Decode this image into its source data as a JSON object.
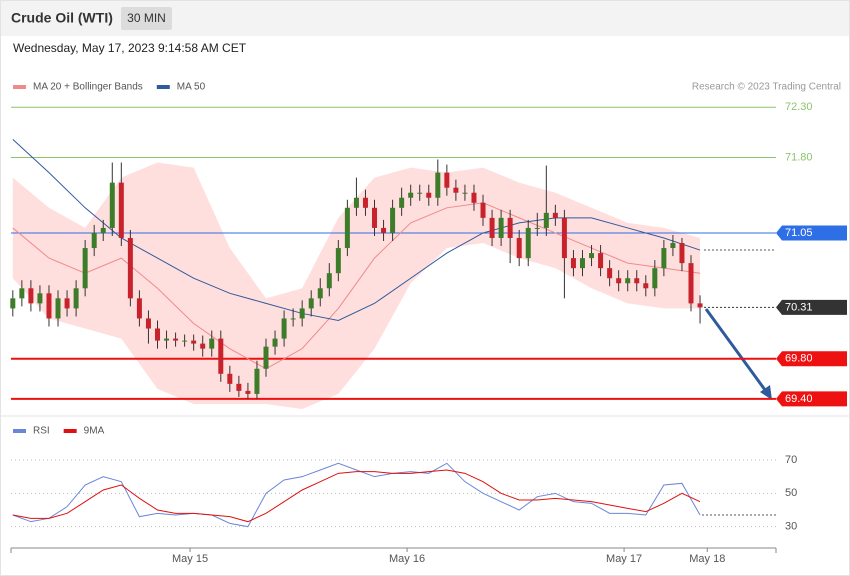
{
  "header": {
    "title": "Crude Oil (WTI)",
    "interval": "30 MIN",
    "timestamp": "Wednesday, May 17, 2023 9:14:58 AM CET",
    "credit": "Research © 2023 Trading Central"
  },
  "chart_data": [
    {
      "type": "candlestick",
      "xlim": [
        -0.2,
        84.4
      ],
      "ylim": [
        69.29,
        72.67
      ],
      "up_color": "#3d7d2a",
      "down_color": "#c8232c",
      "open": [
        70.3,
        70.4,
        70.5,
        70.35,
        70.45,
        70.2,
        70.4,
        70.3,
        70.5,
        70.9,
        71.05,
        71.1,
        71.55,
        71.0,
        70.4,
        70.2,
        70.1,
        69.98,
        70.0,
        69.98,
        69.98,
        69.95,
        69.9,
        70.0,
        69.65,
        69.55,
        69.48,
        69.45,
        69.7,
        69.92,
        70.0,
        70.2,
        70.2,
        70.3,
        70.4,
        70.5,
        70.65,
        70.9,
        71.3,
        71.4,
        71.3,
        71.1,
        71.05,
        71.3,
        71.4,
        71.45,
        71.45,
        71.4,
        71.65,
        71.5,
        71.45,
        71.45,
        71.35,
        71.2,
        71.0,
        71.2,
        71.0,
        70.8,
        71.1,
        71.1,
        71.25,
        71.2,
        70.8,
        70.7,
        70.8,
        70.85,
        70.7,
        70.6,
        70.55,
        70.6,
        70.55,
        70.5,
        70.7,
        70.9,
        70.95,
        70.75,
        70.35
      ],
      "high": [
        70.48,
        70.58,
        70.58,
        70.53,
        70.53,
        70.48,
        70.48,
        70.58,
        70.98,
        71.13,
        71.18,
        71.75,
        71.75,
        71.08,
        70.48,
        70.28,
        70.18,
        70.08,
        70.06,
        70.04,
        70.04,
        70.03,
        70.08,
        70.08,
        69.73,
        69.63,
        69.56,
        69.78,
        70.0,
        70.08,
        70.28,
        70.3,
        70.38,
        70.48,
        70.6,
        70.75,
        70.98,
        71.38,
        71.6,
        71.48,
        71.38,
        71.18,
        71.38,
        71.5,
        71.53,
        71.53,
        71.53,
        71.78,
        71.73,
        71.58,
        71.53,
        71.53,
        71.43,
        71.28,
        71.28,
        71.28,
        71.08,
        71.18,
        71.25,
        71.72,
        71.33,
        71.28,
        70.88,
        70.88,
        70.93,
        70.93,
        70.78,
        70.68,
        70.68,
        70.68,
        70.63,
        70.78,
        70.98,
        71.03,
        71.0,
        70.83,
        70.43
      ],
      "low": [
        70.22,
        70.32,
        70.27,
        70.27,
        70.12,
        70.12,
        70.22,
        70.22,
        70.42,
        70.82,
        70.97,
        71.02,
        70.92,
        70.32,
        70.12,
        69.95,
        69.9,
        69.9,
        69.92,
        69.92,
        69.88,
        69.82,
        69.82,
        69.57,
        69.47,
        69.42,
        69.4,
        69.4,
        69.62,
        69.84,
        69.92,
        70.12,
        70.12,
        70.22,
        70.32,
        70.42,
        70.57,
        70.82,
        71.22,
        71.22,
        71.02,
        70.97,
        70.97,
        71.22,
        71.32,
        71.37,
        71.32,
        71.32,
        71.42,
        71.37,
        71.37,
        71.27,
        71.12,
        70.92,
        70.92,
        70.75,
        70.72,
        70.72,
        71.02,
        71.02,
        71.12,
        70.4,
        70.62,
        70.62,
        70.72,
        70.62,
        70.52,
        70.47,
        70.47,
        70.47,
        70.42,
        70.42,
        70.62,
        70.82,
        70.67,
        70.27,
        70.15
      ],
      "close": [
        70.4,
        70.5,
        70.35,
        70.45,
        70.2,
        70.4,
        70.3,
        70.5,
        70.9,
        71.05,
        71.1,
        71.55,
        71.0,
        70.4,
        70.2,
        70.1,
        69.98,
        70.0,
        69.98,
        69.98,
        69.95,
        69.9,
        70.0,
        69.65,
        69.55,
        69.48,
        69.45,
        69.7,
        69.92,
        70.0,
        70.2,
        70.2,
        70.3,
        70.4,
        70.5,
        70.65,
        70.9,
        71.3,
        71.4,
        71.3,
        71.1,
        71.05,
        71.3,
        71.4,
        71.45,
        71.45,
        71.4,
        71.65,
        71.5,
        71.45,
        71.45,
        71.35,
        71.2,
        71.0,
        71.2,
        71.0,
        70.8,
        71.1,
        71.1,
        71.25,
        71.2,
        70.8,
        70.7,
        70.8,
        70.85,
        70.7,
        70.6,
        70.55,
        70.6,
        70.55,
        70.5,
        70.7,
        70.9,
        70.95,
        70.75,
        70.35,
        70.31
      ],
      "ma_x": [
        0,
        4,
        8,
        12,
        16,
        20,
        24,
        28,
        32,
        36,
        40,
        44,
        48,
        52,
        56,
        60,
        64,
        68,
        72,
        76
      ],
      "series": [
        {
          "name": "MA 20 + Bollinger Bands",
          "color": "#f08a8a",
          "band_color": "#ffdede",
          "values": [
            71.1,
            70.8,
            70.65,
            70.8,
            70.5,
            70.15,
            69.9,
            69.7,
            69.9,
            70.3,
            70.8,
            71.15,
            71.3,
            71.35,
            71.2,
            71.05,
            70.9,
            70.75,
            70.7,
            70.65
          ],
          "upper": [
            71.6,
            71.3,
            71.1,
            71.6,
            71.75,
            71.7,
            70.9,
            70.4,
            70.5,
            71.2,
            71.6,
            71.7,
            71.65,
            71.7,
            71.55,
            71.45,
            71.3,
            71.15,
            71.1,
            71.0
          ],
          "lower": [
            70.6,
            70.2,
            70.1,
            70.0,
            69.5,
            69.35,
            69.35,
            69.35,
            69.3,
            69.45,
            69.9,
            70.55,
            70.9,
            70.95,
            70.8,
            70.7,
            70.5,
            70.35,
            70.3,
            70.3
          ]
        },
        {
          "name": "MA 50",
          "color": "#2f5b9c",
          "values": [
            71.98,
            71.65,
            71.3,
            71.0,
            70.8,
            70.6,
            70.45,
            70.35,
            70.25,
            70.18,
            70.35,
            70.6,
            70.85,
            71.05,
            71.15,
            71.2,
            71.2,
            71.1,
            71.0,
            70.88
          ]
        }
      ],
      "levels": [
        {
          "value": 72.3,
          "label": "72.30",
          "color": "#8cc46c",
          "style": "line"
        },
        {
          "value": 71.8,
          "label": "71.80",
          "color": "#8cc46c",
          "style": "line"
        },
        {
          "value": 71.05,
          "label": "71.05",
          "color": "#2f6fe6",
          "style": "box"
        },
        {
          "value": 70.31,
          "label": "70.31",
          "color": "#333333",
          "style": "dotted-box"
        },
        {
          "value": 69.8,
          "label": "69.80",
          "color": "#ee1111",
          "style": "box"
        },
        {
          "value": 69.4,
          "label": "69.40",
          "color": "#ee1111",
          "style": "box"
        }
      ]
    },
    {
      "type": "line",
      "xlim": [
        -0.2,
        84.4
      ],
      "ylim": [
        22,
        79
      ],
      "yticks": [
        30,
        50,
        70
      ],
      "x": [
        0,
        2,
        4,
        6,
        8,
        10,
        12,
        14,
        16,
        18,
        20,
        22,
        24,
        26,
        28,
        30,
        32,
        34,
        36,
        38,
        40,
        42,
        44,
        46,
        48,
        50,
        52,
        54,
        56,
        58,
        60,
        62,
        64,
        66,
        68,
        70,
        72,
        74,
        76
      ],
      "xticks": [
        {
          "value": 19.6,
          "label": "May 15"
        },
        {
          "value": 43.6,
          "label": "May 16"
        },
        {
          "value": 67.6,
          "label": "May 17"
        },
        {
          "value": 76.8,
          "label": "May 18"
        }
      ],
      "series": [
        {
          "name": "RSI",
          "color": "#6a86d8",
          "values": [
            37,
            33,
            35,
            42,
            55,
            60,
            57,
            36,
            38,
            37,
            38,
            37,
            32,
            30,
            50,
            58,
            60,
            64,
            68,
            64,
            60,
            62,
            63,
            62,
            68,
            57,
            50,
            45,
            40,
            48,
            50,
            45,
            44,
            38,
            38,
            37,
            55,
            56,
            37
          ]
        },
        {
          "name": "9MA",
          "color": "#e01010",
          "values": [
            37,
            35,
            35,
            38,
            45,
            52,
            55,
            47,
            40,
            38,
            38,
            37,
            36,
            33,
            38,
            45,
            52,
            57,
            62,
            63,
            63,
            62,
            62,
            63,
            64,
            62,
            57,
            50,
            46,
            46,
            47,
            46,
            45,
            43,
            41,
            39,
            44,
            50,
            45
          ]
        }
      ]
    }
  ]
}
